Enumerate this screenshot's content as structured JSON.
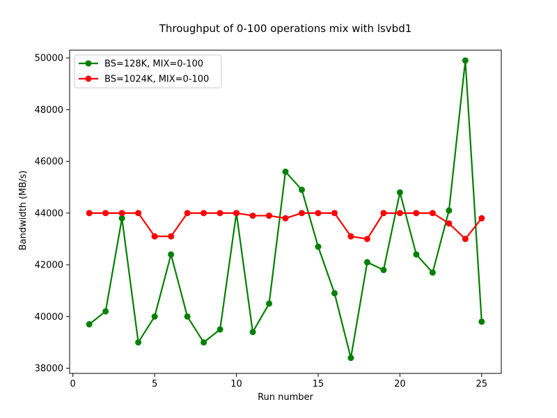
{
  "chart_data": {
    "type": "line",
    "title": "Throughput of 0-100 operations mix with lsvbd1",
    "xlabel": "Run number",
    "ylabel": "Bandwidth (MB/s)",
    "xlim": [
      -0.2,
      26.2
    ],
    "ylim": [
      37800,
      50300
    ],
    "xticks": [
      0,
      5,
      10,
      15,
      20,
      25
    ],
    "yticks": [
      38000,
      40000,
      42000,
      44000,
      46000,
      48000,
      50000
    ],
    "legend_position": "top-left",
    "grid": false,
    "x": [
      1,
      2,
      3,
      4,
      5,
      6,
      7,
      8,
      9,
      10,
      11,
      12,
      13,
      14,
      15,
      16,
      17,
      18,
      19,
      20,
      21,
      22,
      23,
      24,
      25
    ],
    "series": [
      {
        "name": "BS=128K, MIX=0-100",
        "color": "#008000",
        "values": [
          39700,
          40200,
          43800,
          39000,
          40000,
          42400,
          40000,
          39000,
          39500,
          44000,
          39400,
          40500,
          45600,
          44900,
          42700,
          40900,
          38400,
          42100,
          41800,
          44800,
          42400,
          41700,
          44100,
          49900,
          39800
        ]
      },
      {
        "name": "BS=1024K, MIX=0-100",
        "color": "#ff0000",
        "values": [
          44000,
          44000,
          44000,
          44000,
          43100,
          43100,
          44000,
          44000,
          44000,
          44000,
          43900,
          43900,
          43800,
          44000,
          44000,
          44000,
          43100,
          43000,
          44000,
          44000,
          44000,
          44000,
          43600,
          43000,
          43800
        ]
      }
    ]
  }
}
